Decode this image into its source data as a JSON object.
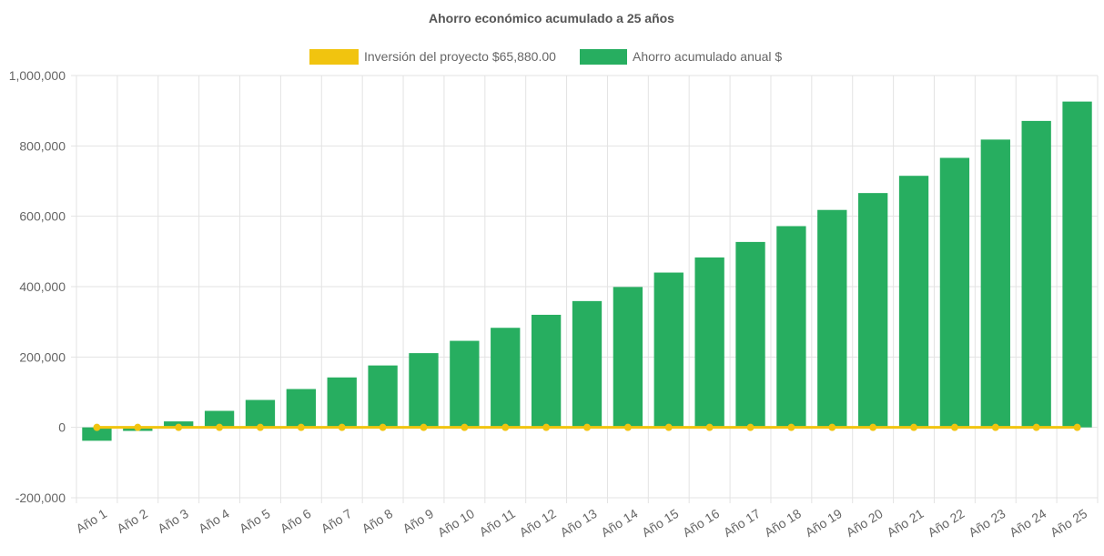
{
  "chart_data": {
    "type": "bar",
    "title": "Ahorro económico acumulado a 25 años",
    "xlabel": "",
    "ylabel": "",
    "ylim": [
      -200000,
      1000000
    ],
    "y_ticks": [
      -200000,
      0,
      200000,
      400000,
      600000,
      800000,
      1000000
    ],
    "y_tick_labels": [
      "-200,000",
      "0",
      "200,000",
      "400,000",
      "600,000",
      "800,000",
      "1,000,000"
    ],
    "grid": true,
    "legend_position": "top",
    "categories": [
      "Año 1",
      "Año 2",
      "Año 3",
      "Año 4",
      "Año 5",
      "Año 6",
      "Año 7",
      "Año 8",
      "Año 9",
      "Año 10",
      "Año 11",
      "Año 12",
      "Año 13",
      "Año 14",
      "Año 15",
      "Año 16",
      "Año 17",
      "Año 18",
      "Año 19",
      "Año 20",
      "Año 21",
      "Año 22",
      "Año 23",
      "Año 24",
      "Año 25"
    ],
    "series": [
      {
        "name": "Inversión del proyecto $65,880.00",
        "type": "line",
        "color": "#f1c40f",
        "values": [
          0,
          0,
          0,
          0,
          0,
          0,
          0,
          0,
          0,
          0,
          0,
          0,
          0,
          0,
          0,
          0,
          0,
          0,
          0,
          0,
          0,
          0,
          0,
          0,
          0
        ]
      },
      {
        "name": "Ahorro acumulado anual $",
        "type": "bar",
        "color": "#27ae60",
        "values": [
          -38000,
          -10000,
          17000,
          47000,
          78000,
          109000,
          142000,
          176000,
          211000,
          246000,
          283000,
          320000,
          359000,
          399000,
          440000,
          483000,
          527000,
          572000,
          618000,
          666000,
          715000,
          766000,
          818000,
          871000,
          926000
        ]
      }
    ]
  }
}
